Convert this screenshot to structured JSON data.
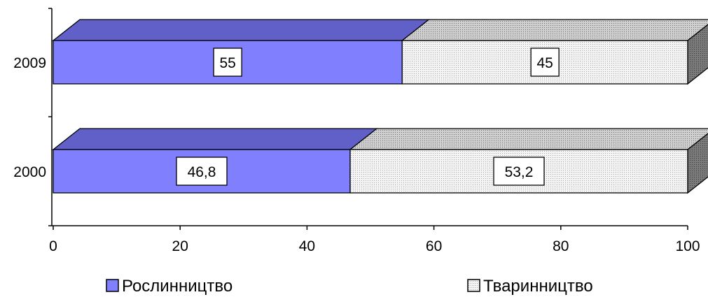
{
  "chart_data": {
    "type": "bar",
    "orientation": "horizontal",
    "stacked": true,
    "three_d": true,
    "categories": [
      "2000",
      "2009"
    ],
    "series": [
      {
        "name": "Рослинництво",
        "values": [
          46.8,
          55
        ],
        "labels": [
          "46,8",
          "55"
        ],
        "color": "#8080ff",
        "top_color": "#6060c8"
      },
      {
        "name": "Тваринництво",
        "values": [
          53.2,
          45
        ],
        "labels": [
          "53,2",
          "45"
        ],
        "color": "#f2f2f2",
        "top_color": "#c4c4c4",
        "pattern": "dotted"
      }
    ],
    "x_ticks": [
      "0",
      "20",
      "40",
      "60",
      "80",
      "100"
    ],
    "xlim": [
      0,
      100
    ],
    "legend_position": "bottom",
    "grid": false
  }
}
